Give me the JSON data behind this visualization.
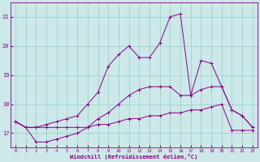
{
  "bg_color": "#cce8e8",
  "line_color": "#880088",
  "grid_color": "#99cccc",
  "xlabel": "Windchill (Refroidissement éolien,°C)",
  "xlim": [
    -0.5,
    23.5
  ],
  "ylim": [
    16.5,
    21.5
  ],
  "yticks": [
    17,
    18,
    19,
    20,
    21
  ],
  "xticks": [
    0,
    1,
    2,
    3,
    4,
    5,
    6,
    7,
    8,
    9,
    10,
    11,
    12,
    13,
    14,
    15,
    16,
    17,
    18,
    19,
    20,
    21,
    22,
    23
  ],
  "series": [
    {
      "x": [
        0,
        1,
        2,
        3,
        4,
        5,
        6,
        7,
        8,
        9,
        10,
        11,
        12,
        13,
        14,
        15,
        16,
        17,
        18,
        19,
        20,
        21,
        22,
        23
      ],
      "y": [
        17.4,
        17.2,
        17.2,
        17.2,
        17.2,
        17.2,
        17.2,
        17.2,
        17.3,
        17.3,
        17.4,
        17.5,
        17.5,
        17.6,
        17.6,
        17.7,
        17.7,
        17.8,
        17.8,
        17.9,
        18.0,
        17.1,
        17.1,
        17.1
      ]
    },
    {
      "x": [
        0,
        1,
        2,
        3,
        4,
        5,
        6,
        7,
        8,
        9,
        10,
        11,
        12,
        13,
        14,
        15,
        16,
        17,
        18,
        19,
        20,
        21,
        22,
        23
      ],
      "y": [
        17.4,
        17.2,
        16.7,
        16.7,
        16.8,
        16.9,
        17.0,
        17.2,
        17.5,
        17.7,
        18.0,
        18.3,
        18.5,
        18.6,
        18.6,
        18.6,
        18.3,
        18.3,
        18.5,
        18.6,
        18.6,
        17.8,
        17.6,
        17.2
      ]
    },
    {
      "x": [
        0,
        1,
        2,
        3,
        4,
        5,
        6,
        7,
        8,
        9,
        10,
        11,
        12,
        13,
        14,
        15,
        16,
        17,
        18,
        19,
        20,
        21,
        22,
        23
      ],
      "y": [
        17.4,
        17.2,
        17.2,
        17.3,
        17.4,
        17.5,
        17.6,
        18.0,
        18.4,
        19.3,
        19.7,
        20.0,
        19.6,
        19.6,
        20.1,
        21.0,
        21.1,
        18.3,
        19.5,
        19.4,
        18.6,
        17.8,
        17.6,
        17.2
      ]
    }
  ]
}
